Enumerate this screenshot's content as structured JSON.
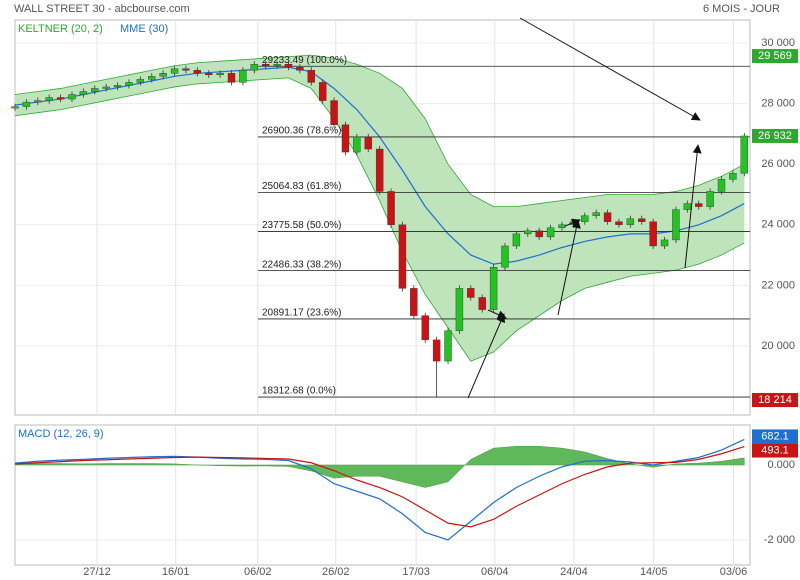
{
  "header": {
    "title": "WALL STREET 30 - abcbourse.com",
    "period": "6 MOIS - JOUR"
  },
  "chart_data": [
    {
      "type": "candlestick",
      "up_color": "#22c322",
      "down_color": "#c81414",
      "grid": true,
      "xlim": [
        0,
        129
      ],
      "ylim": [
        17720,
        30760
      ],
      "yticks": [
        {
          "value": 20000,
          "label": "20 000"
        },
        {
          "value": 22000,
          "label": "22 000"
        },
        {
          "value": 24000,
          "label": "24 000"
        },
        {
          "value": 26000,
          "label": "26 000"
        },
        {
          "value": 28000,
          "label": "28 000"
        },
        {
          "value": 30000,
          "label": "30 000"
        }
      ],
      "x": [
        0,
        2,
        4,
        6,
        8,
        10,
        12,
        14,
        16,
        18,
        20,
        22,
        24,
        26,
        28,
        30,
        32,
        34,
        36,
        38,
        40,
        42,
        44,
        46,
        48,
        50,
        52,
        54,
        56,
        58,
        60,
        62,
        64,
        66,
        68,
        70,
        72,
        74,
        76,
        78,
        80,
        82,
        84,
        86,
        88,
        90,
        92,
        94,
        96,
        98,
        100,
        102,
        104,
        106,
        108,
        110,
        112,
        114,
        116,
        118,
        120,
        122,
        124,
        126,
        128
      ],
      "open": [
        27850,
        27900,
        28050,
        28100,
        28200,
        28150,
        28300,
        28400,
        28500,
        28550,
        28600,
        28700,
        28800,
        28900,
        29000,
        29150,
        29100,
        29000,
        28950,
        29000,
        28700,
        29100,
        29300,
        29250,
        29300,
        29200,
        29100,
        28700,
        28100,
        27300,
        26400,
        26900,
        26500,
        25100,
        24000,
        21900,
        21000,
        20200,
        19500,
        20500,
        21900,
        21600,
        21200,
        22600,
        23300,
        23700,
        23800,
        23600,
        23900,
        24000,
        24100,
        24300,
        24400,
        24100,
        24000,
        24200,
        24100,
        23300,
        23500,
        24500,
        24700,
        24600,
        25100,
        25500,
        25700
      ],
      "high": [
        28000,
        28150,
        28200,
        28300,
        28300,
        28400,
        28500,
        28600,
        28650,
        28700,
        28800,
        28900,
        29000,
        29100,
        29250,
        29250,
        29200,
        29100,
        29100,
        29100,
        29200,
        29400,
        29400,
        29400,
        29400,
        29300,
        29200,
        28800,
        28200,
        27400,
        27000,
        27000,
        26600,
        25200,
        24100,
        22000,
        21100,
        20300,
        20600,
        22000,
        22000,
        21700,
        22700,
        23400,
        23800,
        23900,
        23900,
        24000,
        24100,
        24200,
        24400,
        24500,
        24500,
        24200,
        24300,
        24300,
        24200,
        23600,
        24600,
        24800,
        24800,
        25200,
        25600,
        25800,
        27030
      ],
      "low": [
        27750,
        27800,
        27950,
        28000,
        28050,
        28050,
        28200,
        28300,
        28400,
        28450,
        28500,
        28600,
        28700,
        28800,
        28900,
        29000,
        28900,
        28850,
        28850,
        28600,
        28600,
        29000,
        29150,
        29150,
        29100,
        29000,
        28600,
        28000,
        27200,
        26300,
        26300,
        26400,
        25000,
        23900,
        21800,
        20900,
        20100,
        18312.68,
        19400,
        20400,
        21500,
        21100,
        21100,
        22500,
        23200,
        23600,
        23500,
        23500,
        23800,
        23900,
        24000,
        24200,
        24000,
        23900,
        23900,
        24000,
        23200,
        23200,
        23400,
        24400,
        24500,
        24500,
        25000,
        25400,
        25600
      ],
      "close": [
        27900,
        28050,
        28100,
        28200,
        28150,
        28300,
        28400,
        28500,
        28550,
        28600,
        28700,
        28800,
        28900,
        29000,
        29150,
        29100,
        29000,
        28950,
        29000,
        28700,
        29100,
        29300,
        29250,
        29300,
        29200,
        29100,
        28700,
        28100,
        27300,
        26400,
        26900,
        26500,
        25100,
        24000,
        21900,
        21000,
        20200,
        19500,
        20500,
        21900,
        21600,
        21200,
        22600,
        23300,
        23700,
        23800,
        23600,
        23900,
        24000,
        24100,
        24300,
        24400,
        24100,
        24000,
        24200,
        24100,
        23300,
        23500,
        24500,
        24700,
        24600,
        25100,
        25500,
        25700,
        26932
      ],
      "series": [
        {
          "name": "KELTNER (20, 2)",
          "color": "#2fa82f",
          "fill": "#bfe3bb",
          "x": [
            0,
            4,
            8,
            12,
            16,
            20,
            24,
            28,
            32,
            36,
            40,
            44,
            48,
            52,
            56,
            60,
            64,
            68,
            72,
            76,
            80,
            84,
            88,
            92,
            96,
            100,
            104,
            108,
            112,
            116,
            120,
            124,
            128
          ],
          "upper": [
            28300,
            28400,
            28500,
            28650,
            28800,
            28950,
            29100,
            29250,
            29350,
            29400,
            29450,
            29500,
            29550,
            29600,
            29500,
            29300,
            29000,
            28500,
            27500,
            26000,
            25000,
            24600,
            24600,
            24700,
            24800,
            24900,
            25000,
            25000,
            25000,
            25100,
            25300,
            25600,
            26000
          ],
          "lower": [
            27600,
            27700,
            27800,
            27950,
            28100,
            28250,
            28400,
            28550,
            28650,
            28700,
            28750,
            28800,
            28850,
            28500,
            27500,
            26300,
            24800,
            23100,
            21700,
            20600,
            19500,
            19800,
            20500,
            21000,
            21500,
            21900,
            22100,
            22300,
            22400,
            22500,
            22700,
            23000,
            23400
          ]
        },
        {
          "name": "MME (30)",
          "color": "#1f6fd0",
          "x": [
            0,
            4,
            8,
            12,
            16,
            20,
            24,
            28,
            32,
            36,
            40,
            44,
            48,
            52,
            56,
            60,
            64,
            68,
            72,
            76,
            80,
            84,
            88,
            92,
            96,
            100,
            104,
            108,
            112,
            116,
            120,
            124,
            128
          ],
          "values": [
            27950,
            28050,
            28150,
            28300,
            28450,
            28600,
            28750,
            28900,
            29000,
            29050,
            29100,
            29150,
            29200,
            29050,
            28500,
            27800,
            26900,
            25800,
            24600,
            23700,
            23000,
            22700,
            22800,
            23000,
            23250,
            23450,
            23600,
            23700,
            23700,
            23800,
            24000,
            24300,
            24700
          ]
        }
      ],
      "fib_levels": [
        {
          "value": 29233.49,
          "label": "29233.49 (100.0%)"
        },
        {
          "value": 26900.36,
          "label": "26900.36 (78.6%)"
        },
        {
          "value": 25064.83,
          "label": "25064.83 (61.8%)"
        },
        {
          "value": 23775.58,
          "label": "23775.58 (50.0%)"
        },
        {
          "value": 22486.33,
          "label": "22486.33 (38.2%)"
        },
        {
          "value": 20891.17,
          "label": "20891.17 (23.6%)"
        },
        {
          "value": 18312.68,
          "label": "18312.68 (0.0%)"
        }
      ],
      "price_markers": [
        {
          "value": 29569,
          "label": "29 569",
          "color": "#2fa82f"
        },
        {
          "value": 26932,
          "label": "26 932",
          "color": "#2fa82f"
        },
        {
          "value": 18214,
          "label": "18 214",
          "color": "#c81414"
        }
      ]
    },
    {
      "type": "macd",
      "title": "MACD (12, 26, 9)",
      "grid": true,
      "xlim": [
        0,
        129
      ],
      "ylim": [
        -2667,
        1067
      ],
      "yticks": [
        {
          "value": -2000,
          "label": "-2 000"
        },
        {
          "value": 0,
          "label": "0.000"
        }
      ],
      "xticks": [
        {
          "value": 14.4,
          "label": "27/12"
        },
        {
          "value": 28.2,
          "label": "16/01"
        },
        {
          "value": 42.6,
          "label": "06/02"
        },
        {
          "value": 56.3,
          "label": "26/02"
        },
        {
          "value": 70.4,
          "label": "17/03"
        },
        {
          "value": 84.2,
          "label": "06/04"
        },
        {
          "value": 98.1,
          "label": "24/04"
        },
        {
          "value": 112.1,
          "label": "14/05"
        },
        {
          "value": 126.1,
          "label": "03/06"
        }
      ],
      "x": [
        0,
        4,
        8,
        12,
        16,
        20,
        24,
        28,
        32,
        36,
        40,
        44,
        48,
        52,
        56,
        60,
        64,
        68,
        72,
        76,
        80,
        84,
        88,
        92,
        96,
        100,
        104,
        108,
        112,
        116,
        120,
        124,
        128
      ],
      "histogram": {
        "color": "#5fb85a",
        "values": [
          20,
          40,
          40,
          30,
          40,
          40,
          40,
          30,
          0,
          -20,
          -30,
          -25,
          -40,
          -160,
          -350,
          -300,
          -300,
          -450,
          -600,
          -450,
          150,
          450,
          500,
          500,
          450,
          350,
          170,
          30,
          -60,
          30,
          50,
          100,
          189
        ]
      },
      "series": [
        {
          "color": "#1f6fd0",
          "values": [
            50,
            100,
            130,
            150,
            180,
            200,
            220,
            230,
            210,
            180,
            160,
            150,
            120,
            -100,
            -500,
            -700,
            -900,
            -1300,
            -1800,
            -2000,
            -1500,
            -1000,
            -600,
            -300,
            -50,
            100,
            120,
            80,
            0,
            100,
            200,
            400,
            682.1
          ]
        },
        {
          "color": "#c81414",
          "values": [
            30,
            60,
            90,
            120,
            140,
            160,
            180,
            200,
            210,
            200,
            190,
            175,
            160,
            60,
            -150,
            -400,
            -600,
            -850,
            -1200,
            -1550,
            -1650,
            -1450,
            -1100,
            -800,
            -500,
            -250,
            -50,
            50,
            60,
            70,
            150,
            300,
            493.1
          ]
        }
      ],
      "markers": [
        {
          "value": 682.1,
          "label": "682.1",
          "color": "#1f6fd0"
        },
        {
          "value": 493.1,
          "label": "493.1",
          "color": "#c81414"
        }
      ]
    }
  ]
}
